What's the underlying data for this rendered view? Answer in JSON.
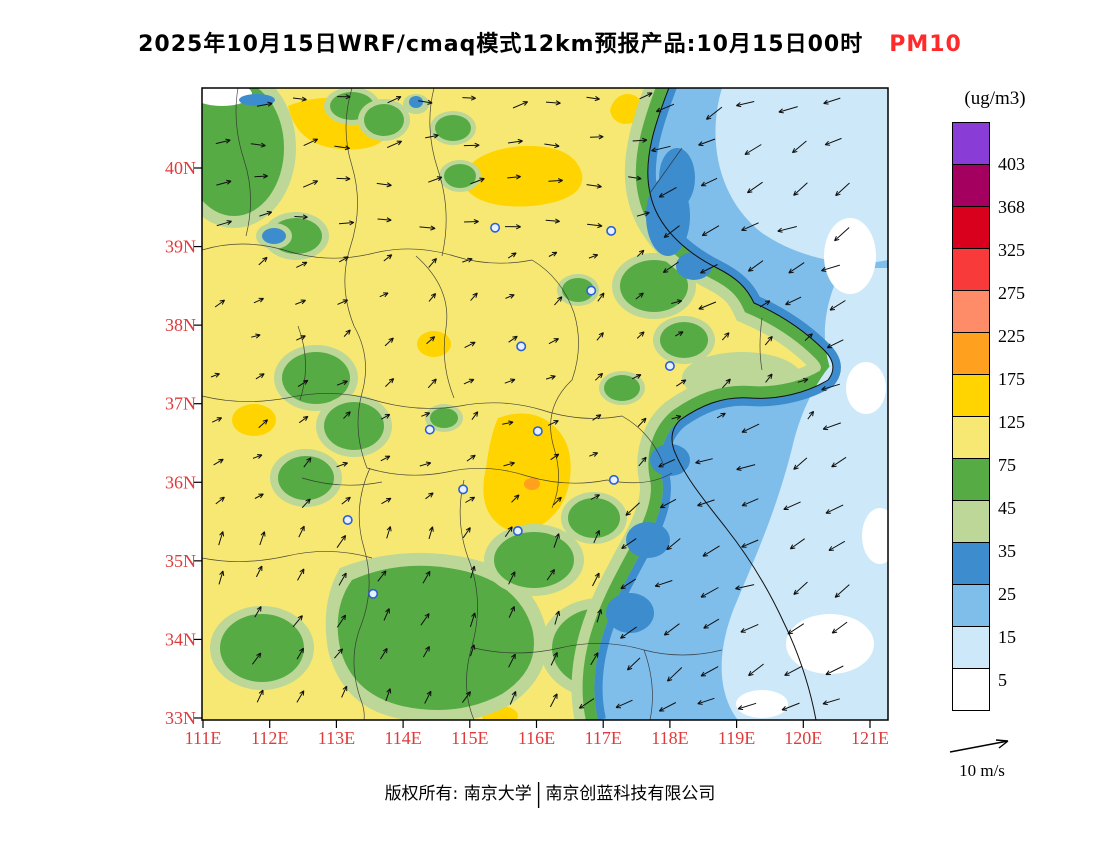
{
  "title": {
    "prefix": "2025年10月15日WRF/cmaq模式12km预报产品:10月15日00时",
    "species": "PM10",
    "species_color": "#FF2A2A"
  },
  "colorbar": {
    "unit_label": "(ug/m3)",
    "tick_labels": [
      "403",
      "368",
      "325",
      "275",
      "225",
      "175",
      "125",
      "75",
      "45",
      "35",
      "25",
      "15",
      "5"
    ]
  },
  "axes": {
    "lon_labels": [
      "111E",
      "112E",
      "113E",
      "114E",
      "115E",
      "116E",
      "117E",
      "118E",
      "119E",
      "120E",
      "121E"
    ],
    "lat_labels": [
      "40N",
      "39N",
      "38N",
      "37N",
      "36N",
      "35N",
      "34N",
      "33N"
    ],
    "label_color": "#E03A3A"
  },
  "wind_legend": {
    "label": "10 m/s",
    "reference_speed": 10,
    "unit": "m/s"
  },
  "footer": {
    "owner": "版权所有: 南京大学",
    "separator": "|",
    "company": "南京创蓝科技有限公司"
  },
  "chart_data": {
    "type": "heatmap",
    "title": "2025年10月15日WRF/cmaq模式12km预报产品:10月15日00时 PM10",
    "variable": "PM10",
    "unit": "ug/m3",
    "model": "WRF/cmaq 12km",
    "valid_time": "10月15日00时",
    "lon_range": [
      111,
      121.3
    ],
    "lat_range": [
      32.95,
      41.0
    ],
    "legend_position": "right",
    "grid": false,
    "levels": [
      5,
      15,
      25,
      35,
      45,
      75,
      125,
      175,
      225,
      275,
      325,
      368,
      403
    ],
    "colors": [
      "#FFFFFF",
      "#CDE9F9",
      "#7FBEEA",
      "#3C8CCE",
      "#BCD797",
      "#57AB45",
      "#F6E873",
      "#FFD400",
      "#FFA01E",
      "#FF8C69",
      "#F93A3A",
      "#D8001D",
      "#A4005F",
      "#8A3DD6"
    ],
    "wind_vectors": {
      "reference_speed_ms": 10
    },
    "station_markers_lonlat": [
      [
        115.38,
        39.24
      ],
      [
        117.12,
        39.2
      ],
      [
        116.82,
        38.44
      ],
      [
        115.77,
        37.73
      ],
      [
        114.4,
        36.67
      ],
      [
        116.02,
        36.65
      ],
      [
        117.16,
        36.03
      ],
      [
        114.9,
        35.91
      ],
      [
        113.17,
        35.52
      ],
      [
        113.55,
        34.58
      ],
      [
        115.72,
        35.38
      ],
      [
        118.0,
        37.48
      ]
    ],
    "approx_values": {
      "lons": [
        111.5,
        112.5,
        113.5,
        114.5,
        115.5,
        116.5,
        117.5,
        118.5,
        119.5,
        120.5
      ],
      "lats": [
        40.5,
        39.5,
        38.5,
        37.5,
        36.5,
        35.5,
        34.5,
        33.5
      ],
      "grid": [
        [
          80,
          90,
          130,
          95,
          90,
          80,
          50,
          20,
          12,
          8
        ],
        [
          60,
          25,
          95,
          100,
          90,
          55,
          20,
          12,
          8,
          6
        ],
        [
          85,
          95,
          100,
          105,
          95,
          45,
          15,
          10,
          8,
          5
        ],
        [
          90,
          100,
          90,
          110,
          100,
          60,
          40,
          25,
          12,
          6
        ],
        [
          95,
          60,
          100,
          140,
          110,
          60,
          30,
          12,
          8,
          5
        ],
        [
          90,
          55,
          85,
          100,
          60,
          40,
          18,
          10,
          6,
          4
        ],
        [
          70,
          50,
          45,
          80,
          70,
          30,
          14,
          8,
          5,
          4
        ],
        [
          85,
          60,
          50,
          70,
          95,
          35,
          15,
          8,
          5,
          4
        ]
      ]
    }
  }
}
